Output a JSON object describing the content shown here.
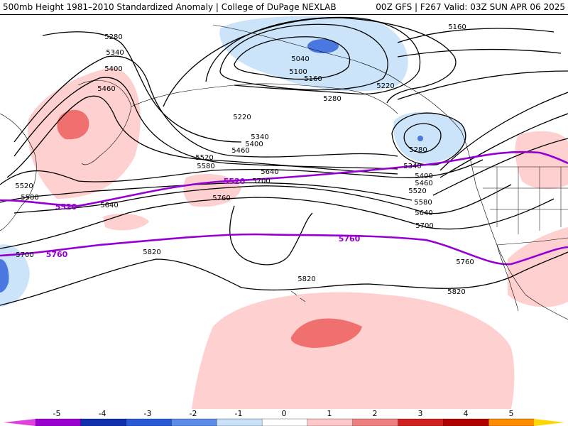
{
  "header": {
    "left": "500mb Height 1981–2010 Standardized Anomaly | College of DuPage NEXLAB",
    "right": "00Z GFS | F267 Valid: 03Z SUN APR 06 2025"
  },
  "contour_labels": {
    "black": [
      "5280",
      "5340",
      "5400",
      "5460",
      "5220",
      "5040",
      "5100",
      "5160",
      "5220",
      "5160",
      "5280",
      "5340",
      "5400",
      "5460",
      "5520",
      "5580",
      "5640",
      "5700",
      "5760",
      "5820",
      "5820",
      "5820",
      "5280",
      "5340",
      "5400",
      "5460",
      "5520",
      "5580",
      "5640",
      "5700",
      "5760",
      "5520",
      "5580",
      "5640",
      "5700"
    ],
    "purple": [
      "5520",
      "5520",
      "5760",
      "5760"
    ]
  },
  "colorbar": {
    "ticks": [
      "-5",
      "-4",
      "-3",
      "-2",
      "-1",
      "0",
      "1",
      "2",
      "3",
      "4",
      "5"
    ],
    "colors": [
      "#e040e0",
      "#9b00d0",
      "#1030b0",
      "#2a5ad8",
      "#5a8ce8",
      "#c8e0f8",
      "#ffffff",
      "#ffc8c8",
      "#f08080",
      "#d02020",
      "#b00000",
      "#ff8c00",
      "#ffd700"
    ]
  },
  "colors": {
    "anomaly_pos_light": "#ffd0d0",
    "anomaly_pos_mid": "#f07070",
    "anomaly_neg_light": "#cce4fa",
    "anomaly_neg_mid": "#4a78e0",
    "contour": "#000000",
    "highlight_contour": "#9400d3"
  }
}
